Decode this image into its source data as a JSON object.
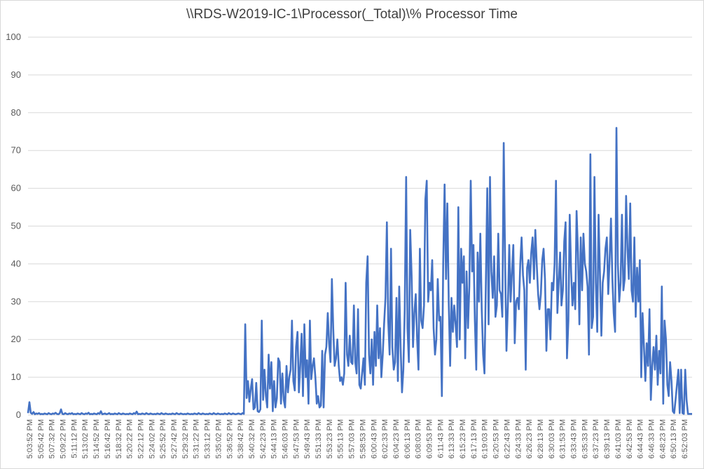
{
  "chart_data": {
    "type": "line",
    "title": "\\\\RDS-W2019-IC-1\\Processor(_Total)\\% Processor Time",
    "xlabel": "",
    "ylabel": "",
    "ylim": [
      0,
      100
    ],
    "yticks": [
      0,
      10,
      20,
      30,
      40,
      50,
      60,
      70,
      80,
      90,
      100
    ],
    "grid": true,
    "legend": "none",
    "color": "#4472c4",
    "x_tick_labels": [
      "5:03:52 PM",
      "5:05:42 PM",
      "5:07:32 PM",
      "5:09:22 PM",
      "5:11:12 PM",
      "5:13:02 PM",
      "5:14:52 PM",
      "5:16:42 PM",
      "5:18:32 PM",
      "5:20:22 PM",
      "5:22:12 PM",
      "5:24:02 PM",
      "5:25:52 PM",
      "5:27:42 PM",
      "5:29:32 PM",
      "5:31:22 PM",
      "5:33:12 PM",
      "5:35:02 PM",
      "5:36:52 PM",
      "5:38:42 PM",
      "5:40:32 PM",
      "5:42:23 PM",
      "5:44:13 PM",
      "5:46:03 PM",
      "5:47:53 PM",
      "5:49:43 PM",
      "5:51:33 PM",
      "5:53:23 PM",
      "5:55:13 PM",
      "5:57:03 PM",
      "5:58:53 PM",
      "6:00:43 PM",
      "6:02:33 PM",
      "6:04:23 PM",
      "6:06:13 PM",
      "6:08:03 PM",
      "6:09:53 PM",
      "6:11:43 PM",
      "6:13:33 PM",
      "6:15:23 PM",
      "6:17:13 PM",
      "6:19:03 PM",
      "6:20:53 PM",
      "6:22:43 PM",
      "6:24:33 PM",
      "6:26:23 PM",
      "6:28:13 PM",
      "6:30:03 PM",
      "6:31:53 PM",
      "6:33:43 PM",
      "6:35:33 PM",
      "6:37:23 PM",
      "6:39:13 PM",
      "6:41:03 PM",
      "6:42:53 PM",
      "6:44:43 PM",
      "6:46:33 PM",
      "6:48:23 PM",
      "6:50:13 PM",
      "6:52:03 PM"
    ],
    "series": [
      {
        "values": [
          0.5,
          3.4,
          0.6,
          0.3,
          0.8,
          0.2,
          0.4,
          0.3,
          0.5,
          0.2,
          0.3,
          0.2,
          0.4,
          0.3,
          0.2,
          0.5,
          0.3,
          0.2,
          0.4,
          0.3,
          0.6,
          0.3,
          0.2,
          0.4,
          1.5,
          0.3,
          0.2,
          0.5,
          0.3,
          0.2,
          0.4,
          0.3,
          0.5,
          0.2,
          0.3,
          0.2,
          0.4,
          0.3,
          0.2,
          0.5,
          0.3,
          0.2,
          0.4,
          0.3,
          0.6,
          0.2,
          0.3,
          0.2,
          0.4,
          0.3,
          0.2,
          0.5,
          0.3,
          1.0,
          0.2,
          0.3,
          0.4,
          0.2,
          0.3,
          0.5,
          0.2,
          0.3,
          0.2,
          0.4,
          0.3,
          0.2,
          0.5,
          0.3,
          0.2,
          0.4,
          0.3,
          0.2,
          0.3,
          0.2,
          0.4,
          0.3,
          0.2,
          0.5,
          0.3,
          0.9,
          0.2,
          0.3,
          0.2,
          0.4,
          0.3,
          0.2,
          0.5,
          0.3,
          0.2,
          0.4,
          0.3,
          0.2,
          0.3,
          0.2,
          0.4,
          0.3,
          0.2,
          0.5,
          0.3,
          0.2,
          0.4,
          0.3,
          0.2,
          0.3,
          0.2,
          0.4,
          0.3,
          0.2,
          0.5,
          0.3,
          0.2,
          0.4,
          0.3,
          0.2,
          0.3,
          0.2,
          0.4,
          0.3,
          0.2,
          0.3,
          0.2,
          0.4,
          0.3,
          0.2,
          0.5,
          0.3,
          0.2,
          0.4,
          0.3,
          0.2,
          0.3,
          0.2,
          0.4,
          0.3,
          0.2,
          0.5,
          0.3,
          0.2,
          0.4,
          0.3,
          0.2,
          0.3,
          0.2,
          0.4,
          0.3,
          0.2,
          0.5,
          0.3,
          0.2,
          0.4,
          0.3,
          0.2,
          0.3,
          0.4,
          0.3,
          0.2,
          0.5,
          0.3,
          24.0,
          4.5,
          9.0,
          3.5,
          7.0,
          9.5,
          1.5,
          2.0,
          8.5,
          1.0,
          0.8,
          1.5,
          25.0,
          4.0,
          12.0,
          5.0,
          2.0,
          16.0,
          7.0,
          14.0,
          1.0,
          9.0,
          2.0,
          4.5,
          15.0,
          14.0,
          3.0,
          11.0,
          4.0,
          2.0,
          13.0,
          6.0,
          10.0,
          12.0,
          25.0,
          9.0,
          6.5,
          18.0,
          22.0,
          6.0,
          13.0,
          21.5,
          5.0,
          24.0,
          10.0,
          14.5,
          3.0,
          25.0,
          9.5,
          13.0,
          15.0,
          10.0,
          3.0,
          5.0,
          2.0,
          2.5,
          17.0,
          2.0,
          16.0,
          18.0,
          27.0,
          19.0,
          14.0,
          36.0,
          23.0,
          13.0,
          15.0,
          20.0,
          13.0,
          9.0,
          10.0,
          8.0,
          11.0,
          35.0,
          16.0,
          13.0,
          21.0,
          14.0,
          13.5,
          29.0,
          14.0,
          11.0,
          28.0,
          8.0,
          7.0,
          11.0,
          15.0,
          8.0,
          35.0,
          42.0,
          16.0,
          11.0,
          20.0,
          8.0,
          22.0,
          13.0,
          29.0,
          15.0,
          23.0,
          10.0,
          16.0,
          24.0,
          31.0,
          51.0,
          25.0,
          16.0,
          44.0,
          18.0,
          12.0,
          14.0,
          31.0,
          9.0,
          34.0,
          18.0,
          6.0,
          12.0,
          28.0,
          63.0,
          23.0,
          14.0,
          49.0,
          37.0,
          18.0,
          27.0,
          32.0,
          20.0,
          12.0,
          44.0,
          25.0,
          23.0,
          29.0,
          57.0,
          62.0,
          30.0,
          35.0,
          33.0,
          41.0,
          23.0,
          16.0,
          20.0,
          36.0,
          25.0,
          26.0,
          5.0,
          40.0,
          61.0,
          36.0,
          56.0,
          30.0,
          13.0,
          31.0,
          22.0,
          29.0,
          24.0,
          18.0,
          55.0,
          20.0,
          44.0,
          35.0,
          42.0,
          15.0,
          38.0,
          23.0,
          34.0,
          62.0,
          38.0,
          45.0,
          25.0,
          12.0,
          43.0,
          30.0,
          48.0,
          28.0,
          16.0,
          11.0,
          35.0,
          60.0,
          24.0,
          63.0,
          38.0,
          31.0,
          42.0,
          26.0,
          29.0,
          48.0,
          33.0,
          32.0,
          26.0,
          72.0,
          40.0,
          17.0,
          29.0,
          45.0,
          30.0,
          38.0,
          45.0,
          19.0,
          30.0,
          31.0,
          28.0,
          40.0,
          47.0,
          37.0,
          33.0,
          12.0,
          39.0,
          41.0,
          35.0,
          43.0,
          47.0,
          36.0,
          49.0,
          40.0,
          32.0,
          28.0,
          32.0,
          41.0,
          44.0,
          36.0,
          17.0,
          28.0,
          28.0,
          20.0,
          35.0,
          33.0,
          40.0,
          62.0,
          27.0,
          35.0,
          43.0,
          29.0,
          33.0,
          46.0,
          51.0,
          15.0,
          25.0,
          53.0,
          38.0,
          29.0,
          35.0,
          28.0,
          54.0,
          43.0,
          24.0,
          47.0,
          33.0,
          48.0,
          40.0,
          38.0,
          34.0,
          16.0,
          69.0,
          23.0,
          26.0,
          63.0,
          35.0,
          22.0,
          53.0,
          37.0,
          21.0,
          35.0,
          38.0,
          44.0,
          47.0,
          32.0,
          41.0,
          52.0,
          36.0,
          27.0,
          22.0,
          76.0,
          40.0,
          30.0,
          35.0,
          53.0,
          33.0,
          36.0,
          58.0,
          44.0,
          36.0,
          56.0,
          33.0,
          30.0,
          47.0,
          26.0,
          39.0,
          30.0,
          41.0,
          10.0,
          27.0,
          18.0,
          9.0,
          19.0,
          13.0,
          28.0,
          4.0,
          13.0,
          18.0,
          12.0,
          21.0,
          8.0,
          17.0,
          11.0,
          34.0,
          3.0,
          25.0,
          20.0,
          8.0,
          5.0,
          14.0,
          9.0,
          1.0,
          0.5,
          4.0,
          8.0,
          12.0,
          0.5,
          12.0,
          0.5,
          0.3,
          12.0,
          4.0,
          0.3,
          0.3,
          0.3,
          0.3
        ]
      }
    ]
  }
}
